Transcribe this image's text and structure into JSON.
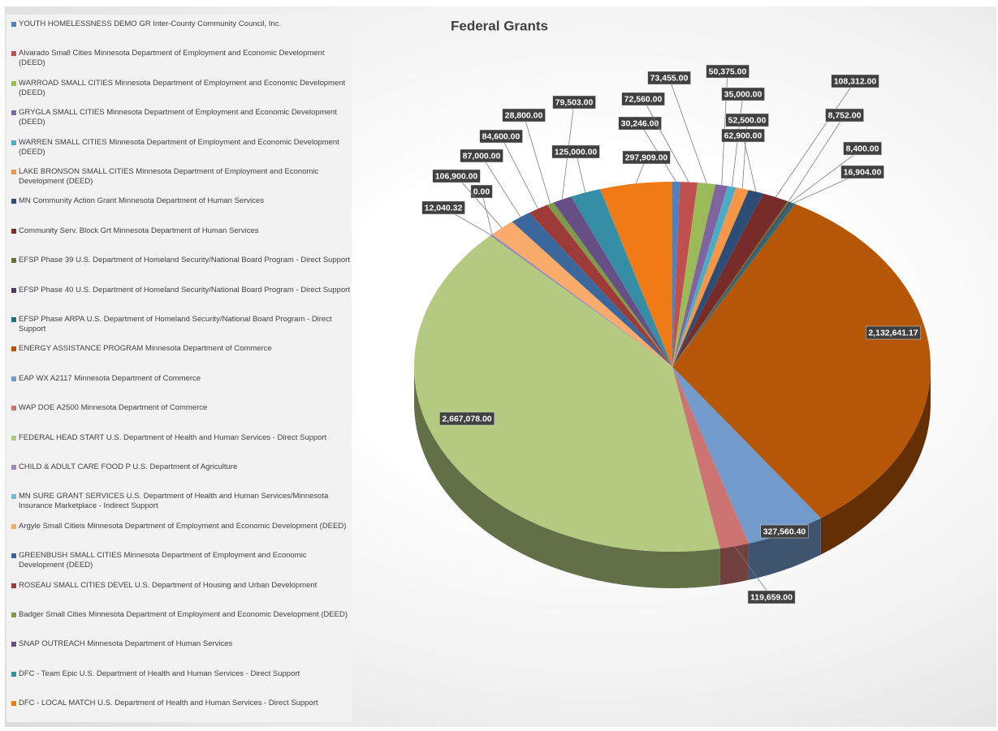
{
  "chart_data": {
    "type": "pie",
    "title": "Federal Grants",
    "categories": [
      "YOUTH HOMELESSNESS DEMO GR Inter-County Community Council, Inc.",
      "Alvarado Small Cities Minnesota Department of Employment and Economic Development (DEED)",
      "WARROAD SMALL CITIES Minnesota Department of Employment and Economic Development (DEED)",
      "GRYGLA SMALL CITIES Minnesota Department of Employment and Economic Development (DEED)",
      "WARREN SMALL CITIES Minnesota Department of Employment and Economic Development (DEED)",
      "LAKE BRONSON SMALL CITIES Minnesota Department of Employment and Economic Development (DEED)",
      "MN Community Action Grant Minnesota Department of Human Services",
      "Community Serv. Block Grt Minnesota Department of Human Services",
      "EFSP Phase 39 U.S. Department of Homeland Security/National Board Program - Direct Support",
      "EFSP Phase 40 U.S. Department of Homeland Security/National Board Program - Direct Support",
      "EFSP Phase ARPA U.S. Department of Homeland Security/National Board Program - Direct Support",
      "ENERGY ASSISTANCE PROGRAM Minnesota Department of Commerce",
      "EAP WX A2117 Minnesota Department of Commerce",
      "WAP DOE A2500 Minnesota Department of Commerce",
      "FEDERAL HEAD START U.S. Department of Health and Human Services - Direct Support",
      "CHILD & ADULT CARE FOOD P U.S. Department of Agriculture",
      "MN SURE GRANT SERVICES U.S. Department of Health and Human Services/Minnesota Insurance Marketplace - Indirect Support",
      "Argyle Small Citieis Minnesota Department of Employment and Economic Development (DEED)",
      "GREENBUSH SMALL CITIES Minnesota Department of Employment and Economic Development (DEED)",
      "ROSEAU SMALL CITIES DEVEL U.S. Department of Housing and Urban Development",
      "Badger Small Cities Minnesota Department of Employment and Economic Development (DEED)",
      "SNAP OUTREACH Minnesota Department of Human Services",
      "DFC - Team Epic U.S. Department of Health and Human Services - Direct Support",
      "DFC - LOCAL MATCH U.S. Department of Health and Human Services - Direct Support"
    ],
    "values": [
      30246,
      72560,
      73455,
      50375,
      35000,
      52500,
      62900,
      108312,
      8752,
      8400,
      16904,
      2132641.17,
      327560.4,
      119659,
      2667078,
      12040.32,
      0,
      106900,
      87000,
      84600,
      28800,
      79503,
      125000,
      297909
    ],
    "value_labels": [
      "30,246.00",
      "72,560.00",
      "73,455.00",
      "50,375.00",
      "35,000.00",
      "52,500.00",
      "62,900.00",
      "108,312.00",
      "8,752.00",
      "8,400.00",
      "16,904.00",
      "2,132,641.17",
      "327,560.40",
      "119,659.00",
      "2,667,078.00",
      "12,040.32",
      "0.00",
      "106,900.00",
      "87,000.00",
      "84,600.00",
      "28,800.00",
      "79,503.00",
      "125,000.00",
      "297,909.00"
    ],
    "colors": [
      "#4f81bd",
      "#c0504d",
      "#9bbb59",
      "#8064a2",
      "#4bacc6",
      "#f79646",
      "#2c4d75",
      "#772c2a",
      "#5f7530",
      "#4d3b62",
      "#276a7c",
      "#b65708",
      "#729aca",
      "#cd7371",
      "#b4ca80",
      "#9c8ab4",
      "#6fbdd1",
      "#f9ab6b",
      "#3a679c",
      "#9e3b38",
      "#7f9a48",
      "#664f84",
      "#358ea6",
      "#f07a16"
    ]
  }
}
